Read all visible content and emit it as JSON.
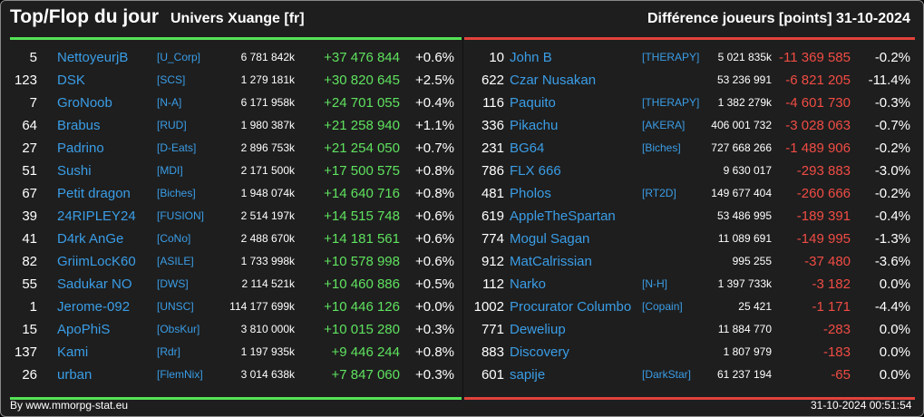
{
  "header": {
    "title": "Top/Flop du jour",
    "universe": "Univers Xuange [fr]",
    "metric": "Différence joueurs [points]",
    "date": "31-10-2024"
  },
  "top": [
    {
      "rank": "5",
      "name": "NettoyeurjB",
      "alliance": "[U_Corp]",
      "points": "6 781 842k",
      "diff": "+37 476 844",
      "pct": "+0.6%"
    },
    {
      "rank": "123",
      "name": "DSK",
      "alliance": "[SCS]",
      "points": "1 279 181k",
      "diff": "+30 820 645",
      "pct": "+2.5%"
    },
    {
      "rank": "7",
      "name": "GroNoob",
      "alliance": "[N-A]",
      "points": "6 171 958k",
      "diff": "+24 701 055",
      "pct": "+0.4%"
    },
    {
      "rank": "64",
      "name": "Brabus",
      "alliance": "[RUD]",
      "points": "1 980 387k",
      "diff": "+21 258 940",
      "pct": "+1.1%"
    },
    {
      "rank": "27",
      "name": "Padrino",
      "alliance": "[D-Eats]",
      "points": "2 896 753k",
      "diff": "+21 254 050",
      "pct": "+0.7%"
    },
    {
      "rank": "51",
      "name": "Sushi",
      "alliance": "[MDI]",
      "points": "2 171 500k",
      "diff": "+17 500 575",
      "pct": "+0.8%"
    },
    {
      "rank": "67",
      "name": "Petit dragon",
      "alliance": "[Biches]",
      "points": "1 948 074k",
      "diff": "+14 640 716",
      "pct": "+0.8%"
    },
    {
      "rank": "39",
      "name": "24RIPLEY24",
      "alliance": "[FUSION]",
      "points": "2 514 197k",
      "diff": "+14 515 748",
      "pct": "+0.6%"
    },
    {
      "rank": "41",
      "name": "D4rk AnGe",
      "alliance": "[CoNo]",
      "points": "2 488 670k",
      "diff": "+14 181 561",
      "pct": "+0.6%"
    },
    {
      "rank": "82",
      "name": "GriimLocK60",
      "alliance": "[ASILE]",
      "points": "1 733 998k",
      "diff": "+10 578 998",
      "pct": "+0.6%"
    },
    {
      "rank": "55",
      "name": "Sadukar NO",
      "alliance": "[DWS]",
      "points": "2 114 521k",
      "diff": "+10 460 886",
      "pct": "+0.5%"
    },
    {
      "rank": "1",
      "name": "Jerome-092",
      "alliance": "[UNSC]",
      "points": "114 177 699k",
      "diff": "+10 446 126",
      "pct": "+0.0%"
    },
    {
      "rank": "15",
      "name": "ApoPhiS",
      "alliance": "[ObsKur]",
      "points": "3 810 000k",
      "diff": "+10 015 280",
      "pct": "+0.3%"
    },
    {
      "rank": "137",
      "name": "Kami",
      "alliance": "[Rdr]",
      "points": "1 197 935k",
      "diff": "+9 446 244",
      "pct": "+0.8%"
    },
    {
      "rank": "26",
      "name": "urban",
      "alliance": "[FlemNix]",
      "points": "3 014 638k",
      "diff": "+7 847 060",
      "pct": "+0.3%"
    }
  ],
  "flop": [
    {
      "rank": "10",
      "name": "John B",
      "alliance": "[THERAPY]",
      "points": "5 021 835k",
      "diff": "-11 369 585",
      "pct": "-0.2%"
    },
    {
      "rank": "622",
      "name": "Czar Nusakan",
      "alliance": "",
      "points": "53 236 991",
      "diff": "-6 821 205",
      "pct": "-11.4%"
    },
    {
      "rank": "116",
      "name": "Paquito",
      "alliance": "[THERAPY]",
      "points": "1 382 279k",
      "diff": "-4 601 730",
      "pct": "-0.3%"
    },
    {
      "rank": "336",
      "name": "Pikachu",
      "alliance": "[AKERA]",
      "points": "406 001 732",
      "diff": "-3 028 063",
      "pct": "-0.7%"
    },
    {
      "rank": "231",
      "name": "BG64",
      "alliance": "[Biches]",
      "points": "727 668 266",
      "diff": "-1 489 906",
      "pct": "-0.2%"
    },
    {
      "rank": "786",
      "name": "FLX 666",
      "alliance": "",
      "points": "9 630 017",
      "diff": "-293 883",
      "pct": "-3.0%"
    },
    {
      "rank": "481",
      "name": "Pholos",
      "alliance": "[RT2D]",
      "points": "149 677 404",
      "diff": "-260 666",
      "pct": "-0.2%"
    },
    {
      "rank": "619",
      "name": "AppleTheSpartan",
      "alliance": "",
      "points": "53 486 995",
      "diff": "-189 391",
      "pct": "-0.4%"
    },
    {
      "rank": "774",
      "name": "Mogul Sagan",
      "alliance": "",
      "points": "11 089 691",
      "diff": "-149 995",
      "pct": "-1.3%"
    },
    {
      "rank": "912",
      "name": "MatCalrissian",
      "alliance": "",
      "points": "995 255",
      "diff": "-37 480",
      "pct": "-3.6%"
    },
    {
      "rank": "112",
      "name": "Narko",
      "alliance": "[N-H]",
      "points": "1 397 733k",
      "diff": "-3 182",
      "pct": "0.0%"
    },
    {
      "rank": "1002",
      "name": "Procurator Columbo",
      "alliance": "[Copain]",
      "points": "25 421",
      "diff": "-1 171",
      "pct": "-4.4%"
    },
    {
      "rank": "771",
      "name": "Deweliup",
      "alliance": "",
      "points": "11 884 770",
      "diff": "-283",
      "pct": "0.0%"
    },
    {
      "rank": "883",
      "name": "Discovery",
      "alliance": "",
      "points": "1 807 979",
      "diff": "-183",
      "pct": "0.0%"
    },
    {
      "rank": "601",
      "name": "sapije",
      "alliance": "[DarkStar]",
      "points": "61 237 194",
      "diff": "-65",
      "pct": "0.0%"
    }
  ],
  "footer": {
    "credit": "By www.mmorpg-stat.eu",
    "timestamp": "31-10-2024 00:51:54"
  }
}
